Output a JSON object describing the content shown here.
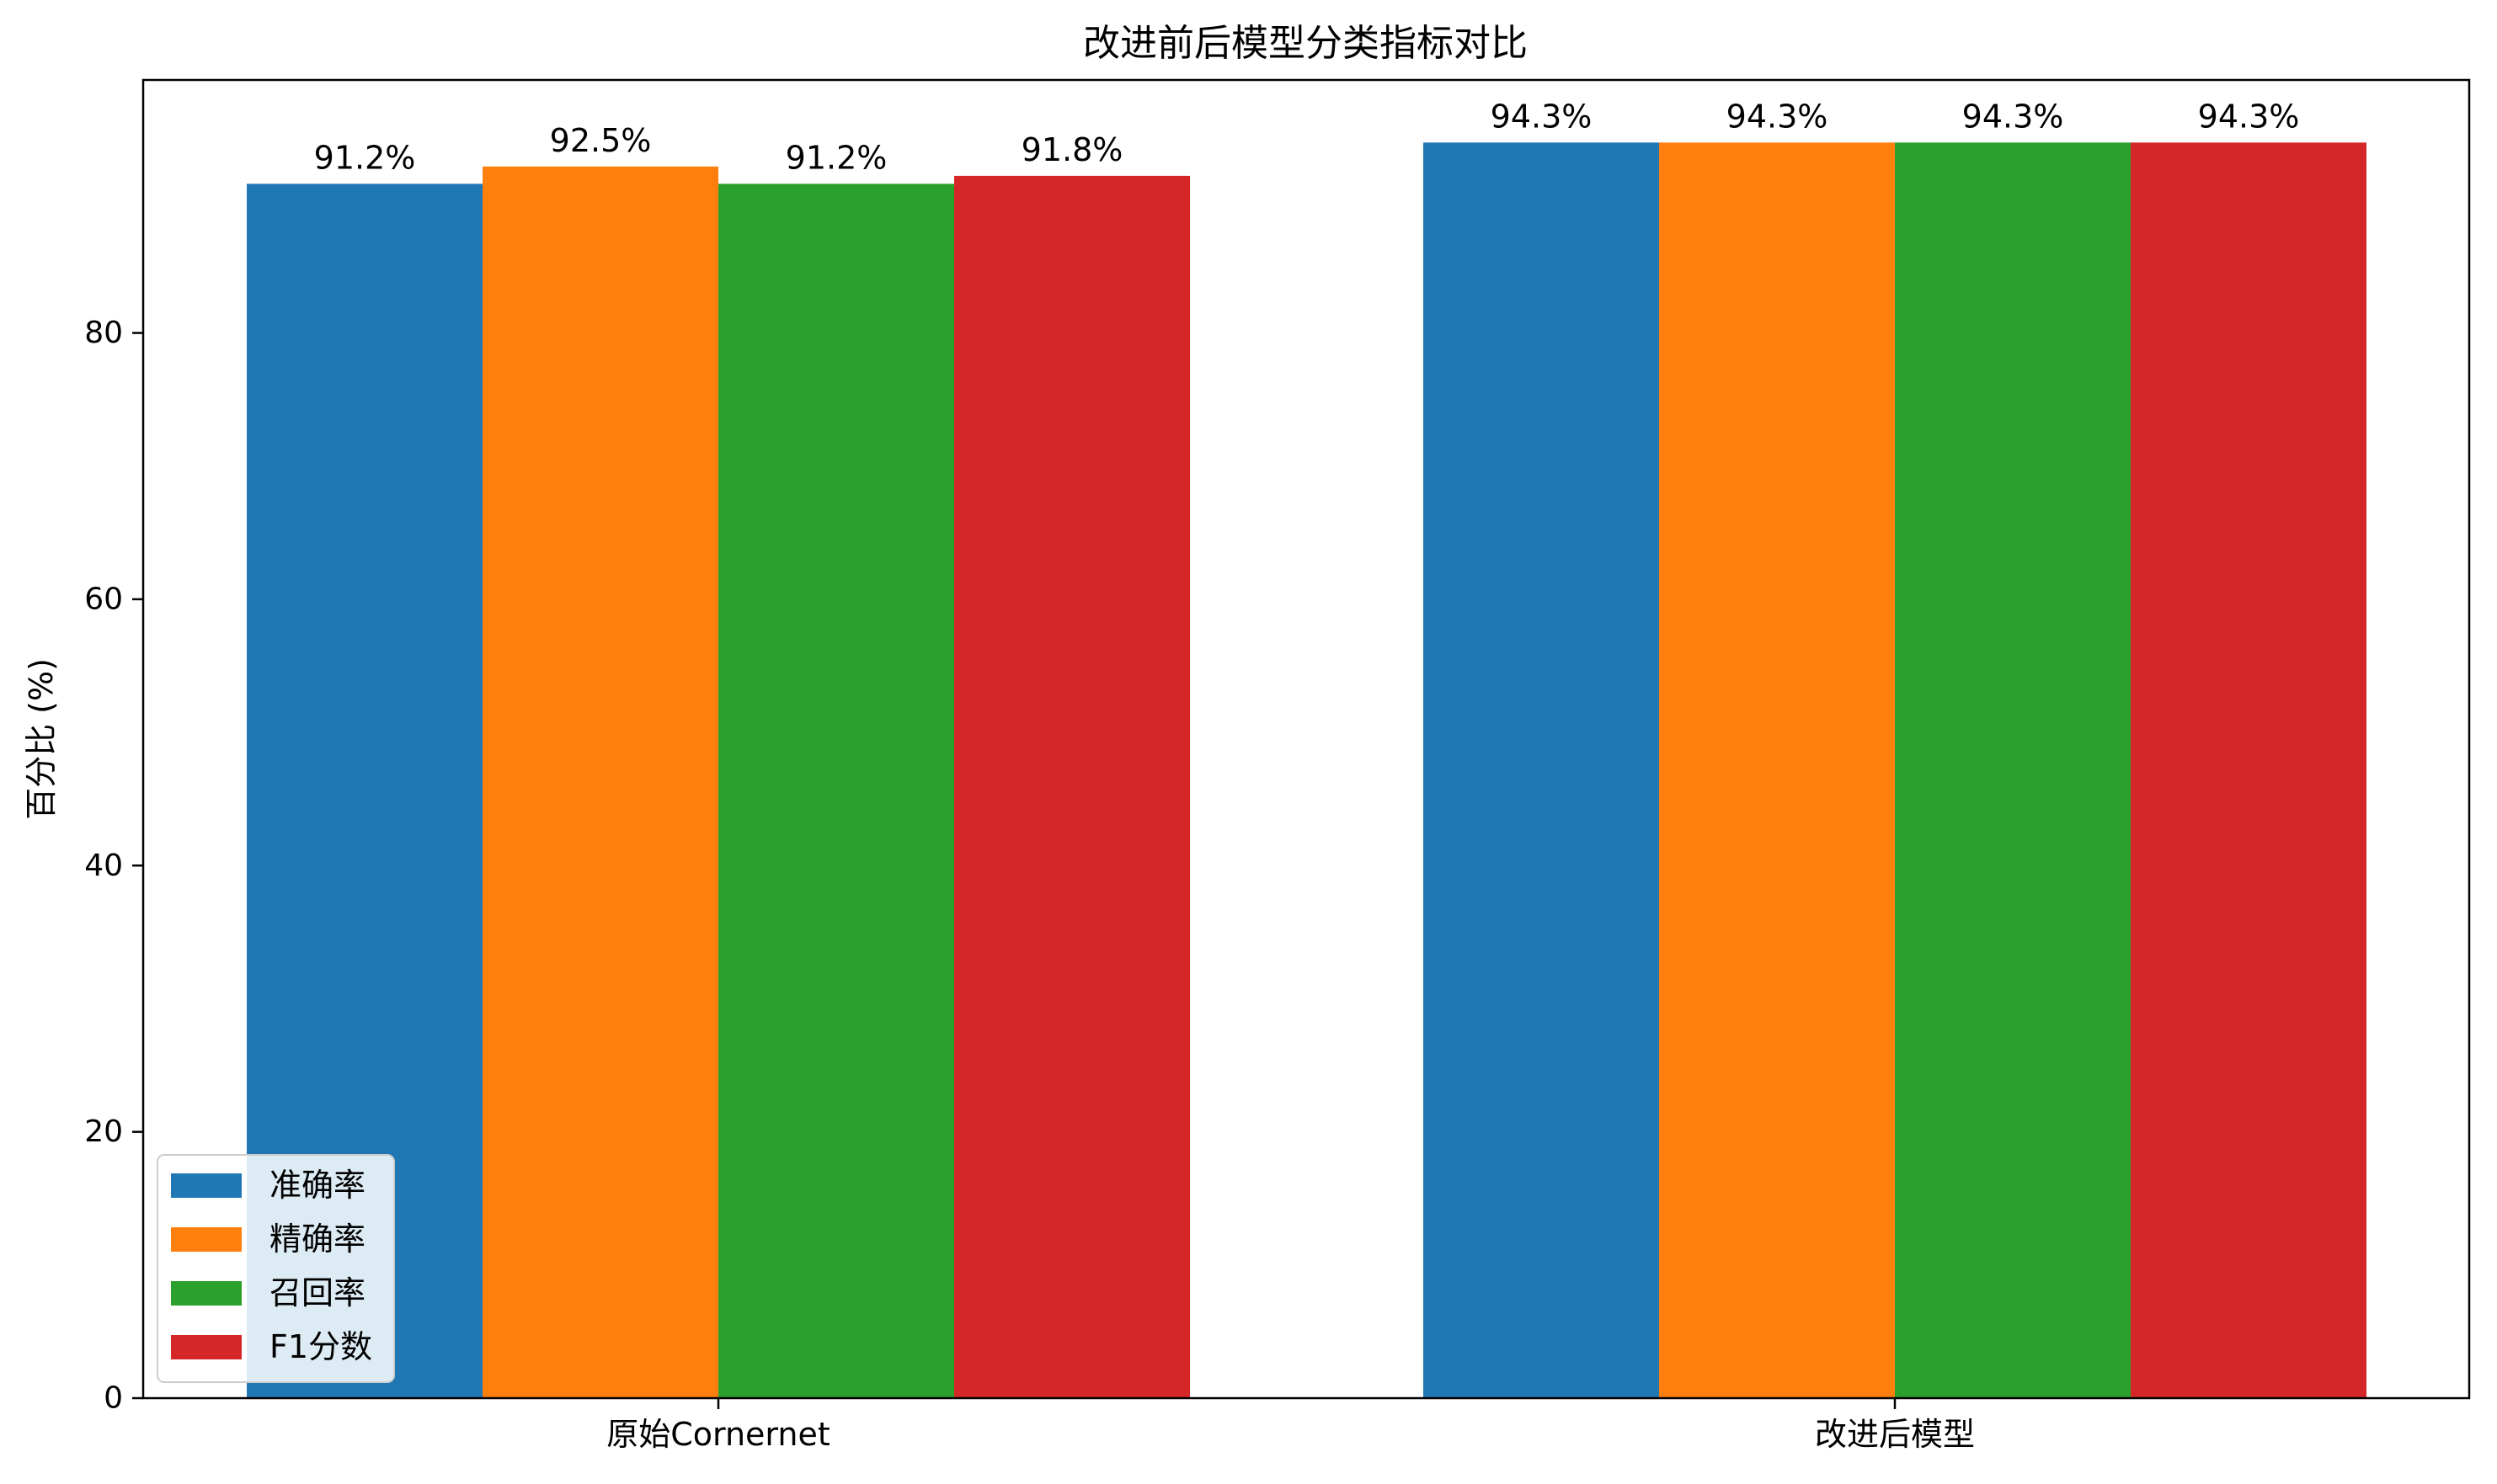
{
  "chart_data": {
    "type": "bar",
    "title": "改进前后模型分类指标对比",
    "xlabel": "",
    "ylabel": "百分比 (%)",
    "categories": [
      "原始Cornernet",
      "改进后模型"
    ],
    "series": [
      {
        "name": "准确率",
        "color": "#1f77b4",
        "values": [
          91.2,
          94.3
        ],
        "labels": [
          "91.2%",
          "94.3%"
        ]
      },
      {
        "name": "精确率",
        "color": "#ff7f0e",
        "values": [
          92.5,
          94.3
        ],
        "labels": [
          "92.5%",
          "94.3%"
        ]
      },
      {
        "name": "召回率",
        "color": "#2ca02c",
        "values": [
          91.2,
          94.3
        ],
        "labels": [
          "91.2%",
          "94.3%"
        ]
      },
      {
        "name": "F1分数",
        "color": "#d62728",
        "values": [
          91.8,
          94.3
        ],
        "labels": [
          "91.8%",
          "94.3%"
        ]
      }
    ],
    "ylim": [
      0,
      99
    ],
    "yticks": [
      0,
      20,
      40,
      60,
      80
    ],
    "ytick_labels": [
      "0",
      "20",
      "40",
      "60",
      "80"
    ],
    "grid": false,
    "legend_position": "lower-left"
  }
}
